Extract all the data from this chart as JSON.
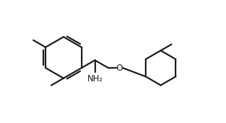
{
  "bg_color": "#ffffff",
  "line_color": "#1a1a1a",
  "text_color": "#1a1a1a",
  "nh2_color": "#1a1a1a",
  "o_color": "#1a1a1a",
  "line_width": 1.6,
  "font_size": 8.5
}
